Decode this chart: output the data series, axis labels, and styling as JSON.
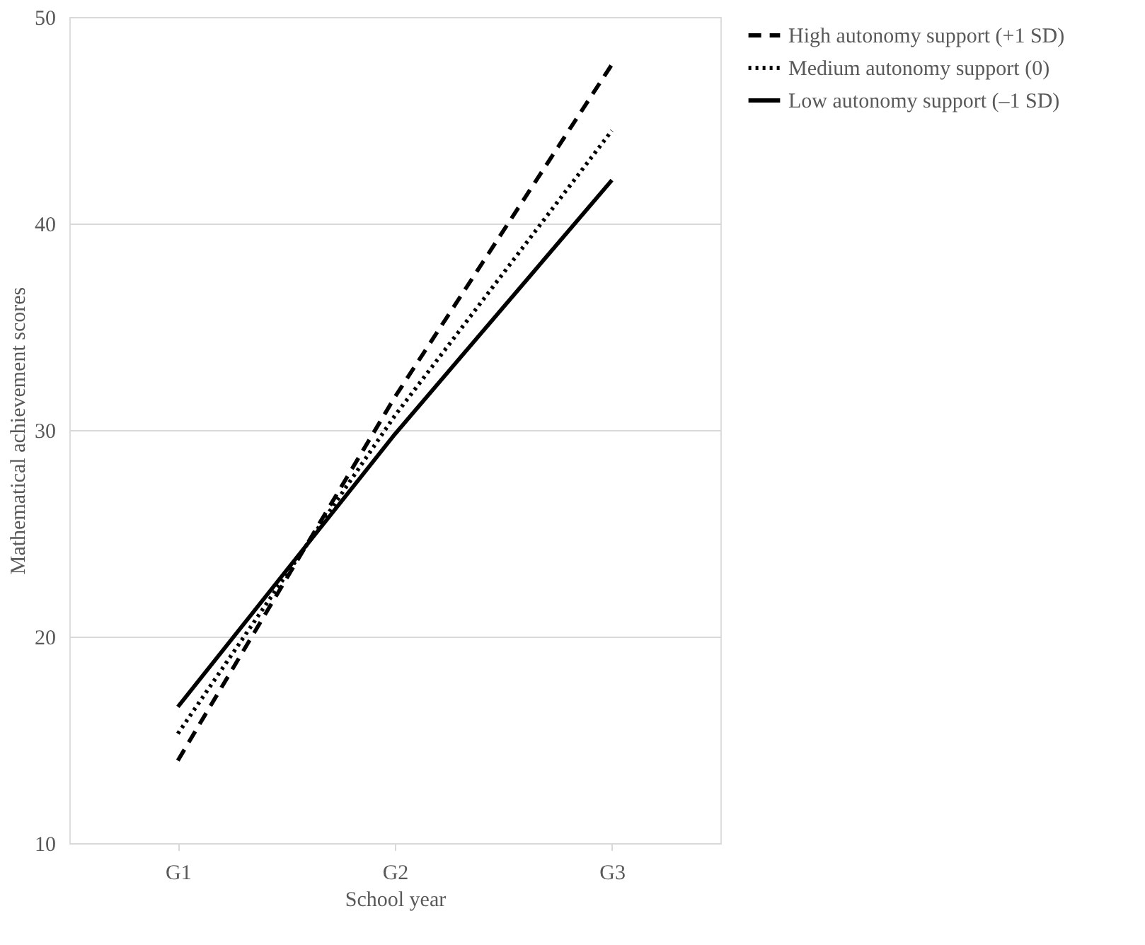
{
  "chart_data": {
    "type": "line",
    "xlabel": "School year",
    "ylabel": "Mathematical achievement scores",
    "categories": [
      "G1",
      "G2",
      "G3"
    ],
    "series": [
      {
        "name": "High autonomy support (+1 SD)",
        "color": "#000000",
        "line_style": "dashed",
        "values": [
          14.0,
          31.6,
          47.7
        ]
      },
      {
        "name": "Medium  autonomy support (0)",
        "color": "#000000",
        "line_style": "dotted",
        "values": [
          15.3,
          30.7,
          44.5
        ]
      },
      {
        "name": "Low autonomy support (–1 SD)",
        "color": "#000000",
        "line_style": "solid",
        "values": [
          16.6,
          29.8,
          42.1
        ]
      }
    ],
    "ylim": [
      10,
      50
    ],
    "yticks": [
      10,
      20,
      30,
      40,
      50
    ],
    "grid": "y",
    "legend": "right",
    "marker": "none"
  }
}
